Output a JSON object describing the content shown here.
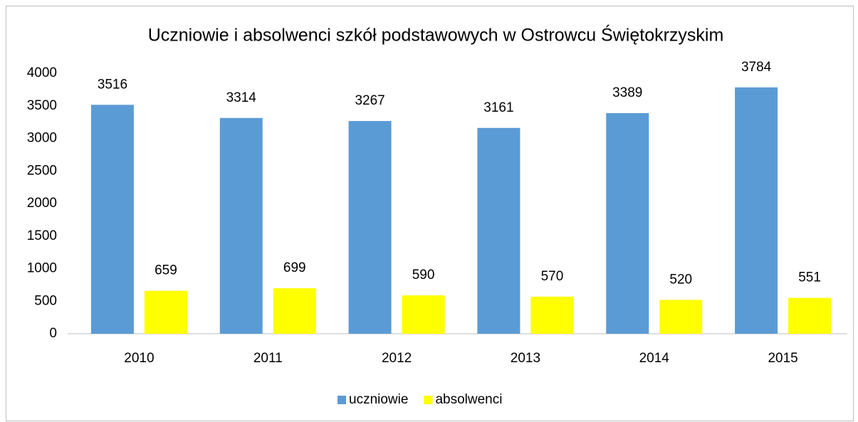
{
  "chart_data": {
    "type": "bar",
    "title": "Uczniowie i absolwenci szkół podstawowych w Ostrowcu Świętokrzyskim",
    "categories": [
      "2010",
      "2011",
      "2012",
      "2013",
      "2014",
      "2015"
    ],
    "series": [
      {
        "name": "uczniowie",
        "color": "#5b9bd5",
        "values": [
          3516,
          3314,
          3267,
          3161,
          3389,
          3784
        ]
      },
      {
        "name": "absolwenci",
        "color": "#ffff00",
        "values": [
          659,
          699,
          590,
          570,
          520,
          551
        ]
      }
    ],
    "ylim": [
      0,
      4000
    ],
    "yticks": [
      0,
      500,
      1000,
      1500,
      2000,
      2500,
      3000,
      3500,
      4000
    ],
    "grid": false,
    "legend": "bottom"
  }
}
